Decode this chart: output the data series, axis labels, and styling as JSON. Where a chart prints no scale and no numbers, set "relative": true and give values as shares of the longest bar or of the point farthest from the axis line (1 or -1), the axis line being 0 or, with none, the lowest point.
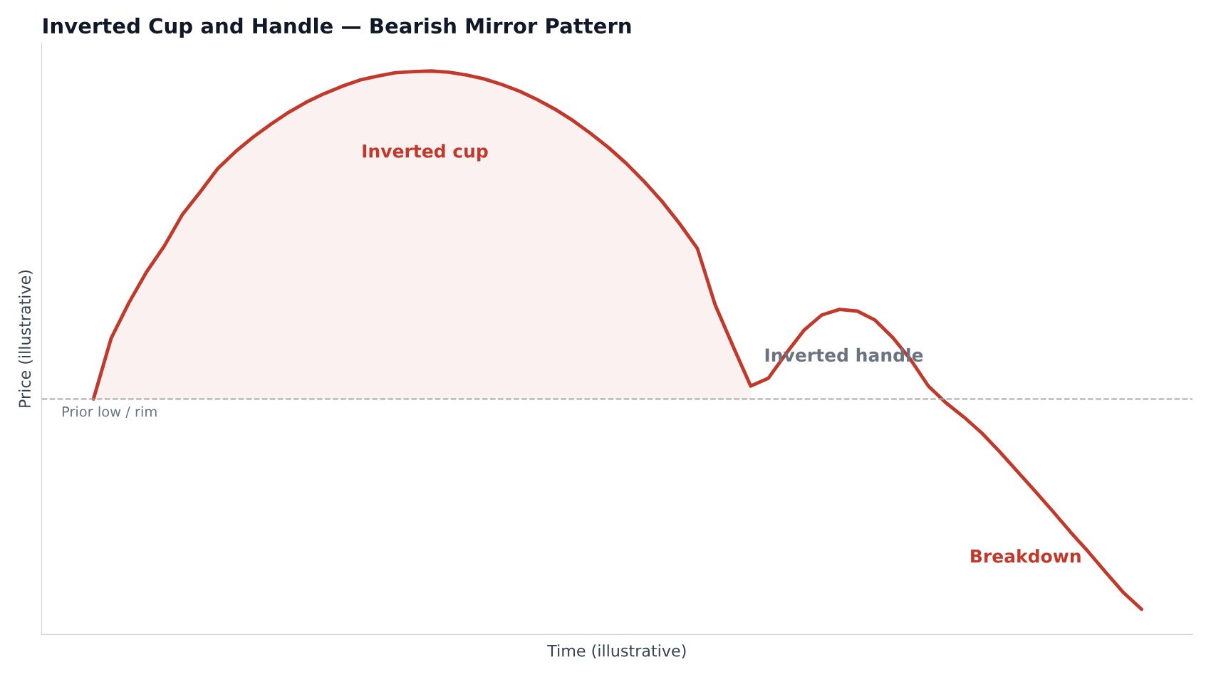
{
  "chart_data": {
    "type": "line",
    "relative": true,
    "title": "Inverted Cup and Handle — Bearish Mirror Pattern",
    "xlabel": "Time (illustrative)",
    "ylabel": "Price (illustrative)",
    "categories": [
      null,
      null,
      null,
      null,
      null,
      null,
      null,
      null,
      null,
      null,
      null,
      null,
      null,
      null,
      null,
      null,
      null,
      null,
      null,
      null,
      null,
      null,
      null,
      null,
      null,
      null,
      null,
      null,
      null,
      null,
      null,
      null,
      null,
      null,
      null,
      null,
      null,
      null,
      null,
      null,
      null,
      null,
      null,
      null,
      null,
      null,
      null,
      null,
      null,
      null,
      null,
      null,
      null,
      null,
      null,
      null,
      null,
      null,
      null,
      null
    ],
    "series": [
      {
        "color": "#c0392b",
        "line_style": "solid",
        "marker": "none",
        "values": [
          0.418,
          0.526,
          0.589,
          0.644,
          0.69,
          0.745,
          0.785,
          0.827,
          0.857,
          0.883,
          0.906,
          0.927,
          0.945,
          0.96,
          0.973,
          0.984,
          0.991,
          0.997,
          0.999,
          1.0,
          0.998,
          0.993,
          0.986,
          0.976,
          0.964,
          0.949,
          0.932,
          0.912,
          0.889,
          0.864,
          0.836,
          0.804,
          0.769,
          0.729,
          0.685,
          0.585,
          0.512,
          0.441,
          0.455,
          0.499,
          0.54,
          0.567,
          0.577,
          0.574,
          0.558,
          0.527,
          0.488,
          0.441,
          0.411,
          0.386,
          0.358,
          0.325,
          0.29,
          0.255,
          0.219,
          0.182,
          0.147,
          0.11,
          0.074,
          0.045
        ],
        "lower": [
          0.418,
          0.418,
          0.418,
          0.418,
          0.418,
          0.418,
          0.418,
          0.418,
          0.418,
          0.418,
          0.418,
          0.418,
          0.418,
          0.418,
          0.418,
          0.418,
          0.418,
          0.418,
          0.418,
          0.418,
          0.418,
          0.418,
          0.418,
          0.418,
          0.418,
          0.418,
          0.418,
          0.418,
          0.418,
          0.418,
          0.418,
          0.418,
          0.418,
          0.418,
          0.418,
          0.418,
          0.418,
          0.418,
          null,
          null,
          null,
          null,
          null,
          null,
          null,
          null,
          null,
          null,
          null,
          null,
          null,
          null,
          null,
          null,
          null,
          null,
          null,
          null,
          null,
          null
        ],
        "upper": [
          0.418,
          0.526,
          0.589,
          0.644,
          0.69,
          0.745,
          0.785,
          0.827,
          0.857,
          0.883,
          0.906,
          0.927,
          0.945,
          0.96,
          0.973,
          0.984,
          0.991,
          0.997,
          0.999,
          1.0,
          0.998,
          0.993,
          0.986,
          0.976,
          0.964,
          0.949,
          0.932,
          0.912,
          0.889,
          0.864,
          0.836,
          0.804,
          0.769,
          0.729,
          0.685,
          0.585,
          0.512,
          0.441,
          null,
          null,
          null,
          null,
          null,
          null,
          null,
          null,
          null,
          null,
          null,
          null,
          null,
          null,
          null,
          null,
          null,
          null,
          null,
          null,
          null,
          null
        ]
      }
    ],
    "ref_lines": [
      {
        "axis": "y",
        "value": 0.418,
        "label": "Prior low / rim",
        "color": "#a8a4ac",
        "line_style": "dashed"
      }
    ],
    "annotations": [
      "Inverted cup",
      "Inverted handle",
      "Breakdown"
    ]
  }
}
